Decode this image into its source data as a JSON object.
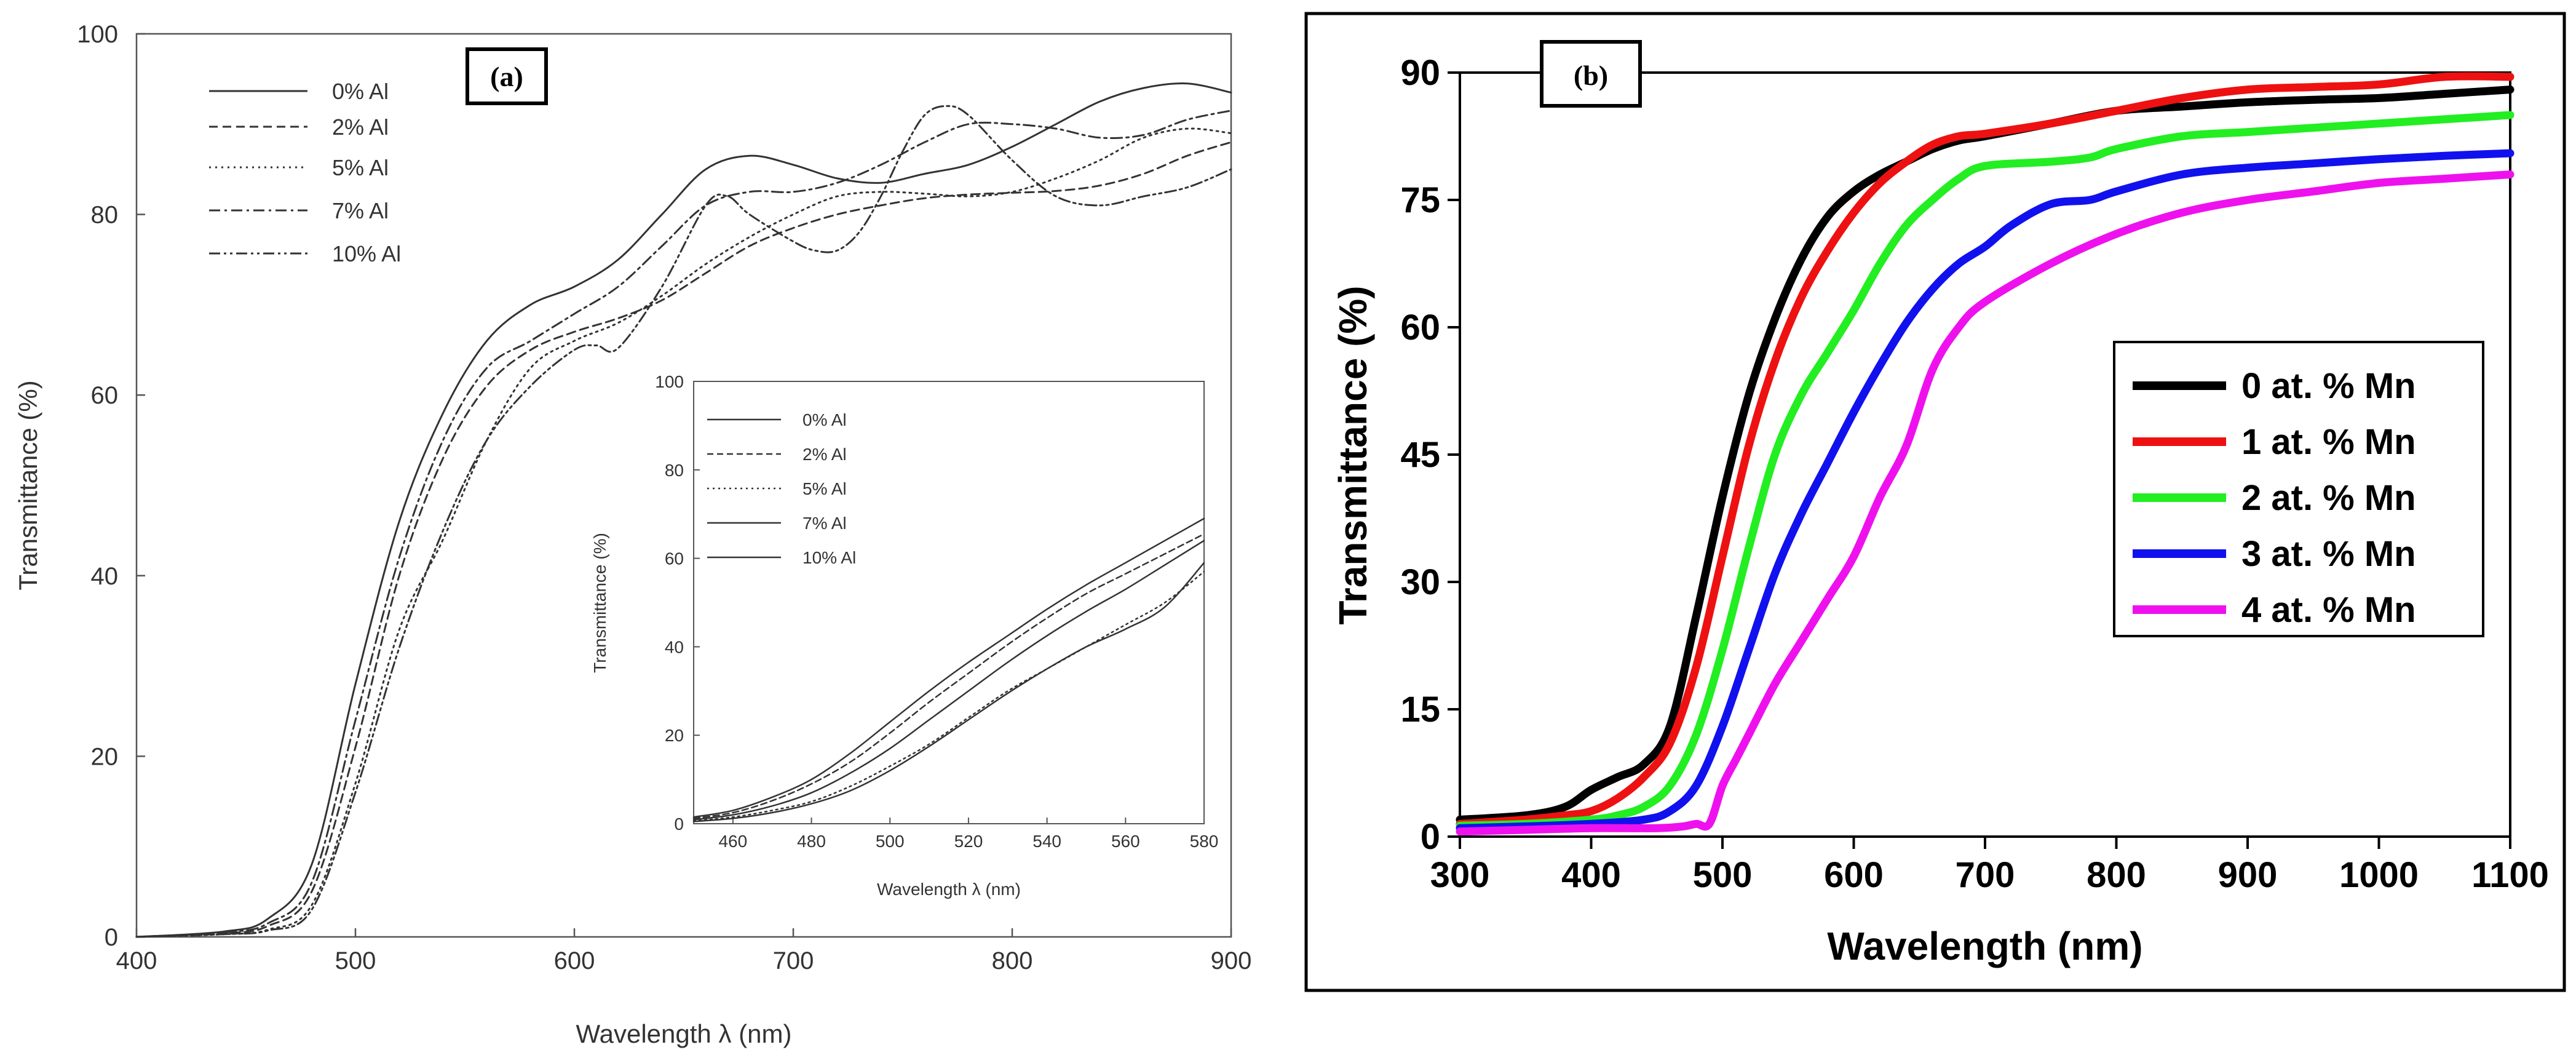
{
  "figure": {
    "panel_a_label": "(a)",
    "panel_b_label": "(b)"
  },
  "colors": {
    "panel_a_curves": "#333333",
    "mn0": "#000000",
    "mn1": "#ee1111",
    "mn2": "#22ee22",
    "mn3": "#1111ee",
    "mn4": "#ee11ee"
  },
  "chart_data": [
    {
      "id": "a_main",
      "type": "line",
      "panel": "(a)",
      "title": "",
      "xlabel": "Wavelength λ (nm)",
      "ylabel": "Transmittance (%)",
      "xlim": [
        400,
        900
      ],
      "ylim": [
        0,
        100
      ],
      "xticks": [
        400,
        500,
        600,
        700,
        800,
        900
      ],
      "yticks": [
        0,
        20,
        40,
        60,
        80,
        100
      ],
      "legend_position": "upper-left",
      "series": [
        {
          "name": "0% Al",
          "dash": "solid",
          "x": [
            400,
            440,
            460,
            480,
            500,
            520,
            540,
            560,
            580,
            600,
            620,
            640,
            660,
            680,
            700,
            720,
            740,
            760,
            780,
            800,
            820,
            840,
            860,
            880,
            900
          ],
          "y": [
            0,
            0.6,
            2,
            8,
            28,
            46,
            58,
            66,
            70,
            72,
            75,
            80,
            85,
            86.5,
            85.5,
            84,
            83.5,
            84.5,
            85.5,
            87.5,
            90,
            92.5,
            94,
            94.5,
            93.5
          ]
        },
        {
          "name": "2% Al",
          "dash": "dashed",
          "x": [
            400,
            440,
            460,
            480,
            500,
            520,
            540,
            560,
            580,
            600,
            620,
            640,
            660,
            680,
            700,
            720,
            740,
            760,
            780,
            800,
            820,
            840,
            860,
            880,
            900
          ],
          "y": [
            0,
            0.4,
            1.2,
            5,
            21,
            40,
            53,
            61,
            65,
            67,
            68.5,
            70.5,
            73.5,
            76.5,
            78.5,
            80,
            81,
            81.8,
            82.2,
            82.4,
            82.6,
            83.2,
            84.5,
            86.5,
            88
          ]
        },
        {
          "name": "5% Al",
          "dash": "dotted",
          "x": [
            400,
            440,
            460,
            480,
            500,
            520,
            540,
            560,
            580,
            600,
            620,
            640,
            660,
            680,
            700,
            720,
            740,
            760,
            780,
            800,
            820,
            840,
            860,
            880,
            900
          ],
          "y": [
            0,
            0.3,
            0.8,
            3.5,
            17,
            34,
            44,
            55,
            63,
            66,
            68,
            71,
            74.5,
            77.5,
            80,
            82,
            82.5,
            82.3,
            82,
            82.5,
            84,
            86,
            88.5,
            89.5,
            89
          ]
        },
        {
          "name": "7% Al",
          "dash": "dashdot",
          "x": [
            400,
            440,
            460,
            480,
            500,
            520,
            540,
            560,
            580,
            600,
            620,
            640,
            660,
            680,
            700,
            720,
            740,
            760,
            780,
            800,
            820,
            840,
            860,
            880,
            900
          ],
          "y": [
            0,
            0.5,
            1.5,
            6,
            24,
            42,
            55,
            63,
            66,
            69,
            72,
            76.5,
            81,
            82.5,
            82.5,
            83.5,
            85.5,
            88,
            90,
            90,
            89.5,
            88.5,
            88.8,
            90.5,
            91.5
          ]
        },
        {
          "name": "10% Al",
          "dash": "dashdotdot",
          "x": [
            400,
            440,
            460,
            480,
            500,
            520,
            540,
            560,
            580,
            600,
            610,
            620,
            640,
            660,
            670,
            680,
            700,
            710,
            720,
            730,
            740,
            750,
            760,
            770,
            780,
            800,
            820,
            840,
            860,
            880,
            900
          ],
          "y": [
            0,
            0.3,
            0.7,
            3,
            16,
            32,
            45,
            55,
            61,
            65,
            65.5,
            65.2,
            72,
            81,
            82,
            80,
            77,
            76,
            76,
            78,
            82,
            87,
            91,
            92,
            91,
            86,
            82,
            81,
            82,
            83,
            85
          ]
        }
      ]
    },
    {
      "id": "a_inset",
      "type": "line",
      "panel": "(a) inset",
      "title": "",
      "xlabel": "Wavelength λ (nm)",
      "ylabel": "Transmittance (%)",
      "xlim": [
        450,
        580
      ],
      "ylim": [
        0,
        100
      ],
      "xticks": [
        460,
        480,
        500,
        520,
        540,
        560,
        580
      ],
      "yticks": [
        0,
        20,
        40,
        60,
        80,
        100
      ],
      "legend_position": "upper-left",
      "series": [
        {
          "name": "0% Al",
          "dash": "solid",
          "x": [
            450,
            460,
            470,
            480,
            490,
            500,
            510,
            520,
            530,
            540,
            550,
            560,
            570,
            580
          ],
          "y": [
            1.5,
            3,
            6,
            10,
            16,
            23,
            30,
            36.5,
            42.5,
            48.5,
            54,
            59,
            64,
            69
          ]
        },
        {
          "name": "2% Al",
          "dash": "dashed",
          "x": [
            450,
            460,
            470,
            480,
            490,
            500,
            510,
            520,
            530,
            540,
            550,
            560,
            570,
            580
          ],
          "y": [
            1.2,
            2.5,
            5.2,
            9,
            14,
            20.5,
            27.5,
            34,
            40.5,
            46.5,
            52,
            56.5,
            61,
            65.5
          ]
        },
        {
          "name": "5% Al",
          "dash": "dotted",
          "x": [
            450,
            460,
            470,
            480,
            490,
            500,
            510,
            520,
            530,
            540,
            550,
            560,
            570,
            580
          ],
          "y": [
            0.6,
            1.5,
            3,
            5,
            8.5,
            13,
            18,
            24,
            30,
            35,
            40,
            45,
            50,
            57
          ]
        },
        {
          "name": "7% Al",
          "dash": "solid",
          "x": [
            450,
            460,
            470,
            480,
            490,
            500,
            510,
            520,
            530,
            540,
            550,
            560,
            570,
            580
          ],
          "y": [
            0.9,
            2,
            4,
            7,
            11.5,
            17,
            23.5,
            30,
            36.5,
            42.5,
            48,
            53,
            58.5,
            64
          ]
        },
        {
          "name": "10% Al",
          "dash": "solid",
          "x": [
            450,
            460,
            470,
            480,
            490,
            500,
            510,
            520,
            530,
            540,
            550,
            560,
            570,
            580
          ],
          "y": [
            0.5,
            1.2,
            2.5,
            4.5,
            7.5,
            12,
            17.5,
            23.5,
            29.5,
            35,
            40,
            44,
            49,
            59
          ]
        }
      ]
    },
    {
      "id": "b_main",
      "type": "line",
      "panel": "(b)",
      "title": "",
      "xlabel": "Wavelength (nm)",
      "ylabel": "Transmittance (%)",
      "xlim": [
        300,
        1100
      ],
      "ylim": [
        0,
        90
      ],
      "xticks": [
        300,
        400,
        500,
        600,
        700,
        800,
        900,
        1000,
        1100
      ],
      "yticks": [
        0,
        15,
        30,
        45,
        60,
        75,
        90
      ],
      "legend_position": "center-right",
      "series": [
        {
          "name": "0 at. % Mn",
          "color": "#000000",
          "x": [
            300,
            350,
            380,
            400,
            420,
            440,
            460,
            480,
            500,
            520,
            540,
            560,
            580,
            600,
            620,
            640,
            660,
            680,
            700,
            750,
            800,
            850,
            900,
            950,
            1000,
            1050,
            1100
          ],
          "y": [
            2,
            2.5,
            3.5,
            5.5,
            7,
            8.5,
            13,
            26,
            40,
            52,
            61,
            68,
            73,
            76,
            78,
            79.5,
            81,
            82,
            82.5,
            84,
            85.5,
            86,
            86.5,
            86.8,
            87,
            87.5,
            88
          ]
        },
        {
          "name": "1 at. % Mn",
          "color": "#ee1111",
          "x": [
            300,
            350,
            380,
            400,
            420,
            440,
            460,
            480,
            500,
            520,
            540,
            560,
            580,
            600,
            620,
            640,
            660,
            680,
            700,
            750,
            800,
            850,
            900,
            950,
            1000,
            1050,
            1100
          ],
          "y": [
            1.5,
            2,
            2.5,
            3,
            4.5,
            7,
            11,
            20,
            33,
            46,
            56,
            63.5,
            69,
            73.5,
            77,
            79.5,
            81.5,
            82.5,
            82.8,
            84,
            85.5,
            87,
            88,
            88.3,
            88.6,
            89.5,
            89.5
          ]
        },
        {
          "name": "2 at. % Mn",
          "color": "#22ee22",
          "x": [
            300,
            350,
            400,
            420,
            440,
            460,
            480,
            500,
            520,
            540,
            560,
            580,
            600,
            620,
            640,
            660,
            680,
            700,
            750,
            780,
            800,
            850,
            900,
            950,
            1000,
            1050,
            1100
          ],
          "y": [
            1.3,
            1.5,
            2,
            2.5,
            3.5,
            6,
            12,
            22,
            34,
            45,
            52,
            57,
            62,
            67.5,
            72,
            75,
            77.5,
            79,
            79.5,
            80,
            81,
            82.5,
            83,
            83.5,
            84,
            84.5,
            85
          ]
        },
        {
          "name": "3 at. % Mn",
          "color": "#1111ee",
          "x": [
            300,
            350,
            400,
            440,
            460,
            480,
            500,
            520,
            540,
            560,
            580,
            600,
            620,
            640,
            660,
            680,
            700,
            720,
            750,
            780,
            800,
            850,
            900,
            950,
            1000,
            1050,
            1100
          ],
          "y": [
            1,
            1.2,
            1.5,
            2,
            3,
            6,
            13,
            22,
            31,
            38,
            44,
            50,
            55.5,
            60.5,
            64.5,
            67.5,
            69.5,
            72,
            74.5,
            75,
            76,
            78,
            78.8,
            79.3,
            79.8,
            80.2,
            80.5
          ]
        },
        {
          "name": "4 at. % Mn",
          "color": "#ee11ee",
          "x": [
            300,
            350,
            400,
            450,
            470,
            480,
            490,
            500,
            510,
            520,
            540,
            560,
            580,
            600,
            620,
            640,
            660,
            680,
            700,
            750,
            800,
            850,
            900,
            950,
            1000,
            1050,
            1100
          ],
          "y": [
            0.6,
            0.8,
            1,
            1,
            1.2,
            1.5,
            1.5,
            6,
            9,
            12,
            18,
            23,
            28,
            33,
            40,
            46,
            55,
            60,
            63,
            67.5,
            71,
            73.5,
            75,
            76,
            77,
            77.5,
            78
          ]
        }
      ]
    }
  ]
}
